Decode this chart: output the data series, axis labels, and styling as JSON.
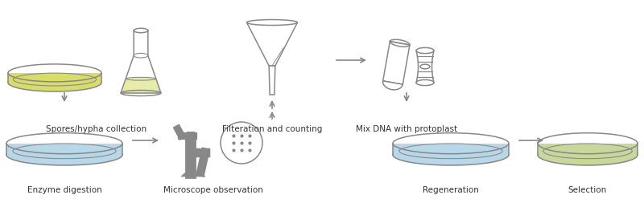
{
  "bg_color": "#ffffff",
  "outline_color": "#888888",
  "lw": 1.1,
  "yellow_fill": "#d8dc6a",
  "yellow_light": "#e8ecaa",
  "blue_fill": "#b8d8ea",
  "green_fill": "#c8d89a",
  "white_fill": "#ffffff",
  "arrow_color": "#666666",
  "text_color": "#333333",
  "font_size": 7.5,
  "labels": {
    "spores": "Spores/hypha collection",
    "filteration": "Filteration and counting",
    "mix_dna": "Mix DNA with protoplast",
    "enzyme": "Enzyme digestion",
    "microscope": "Microscope observation",
    "regeneration": "Regeneration",
    "selection": "Selection"
  }
}
